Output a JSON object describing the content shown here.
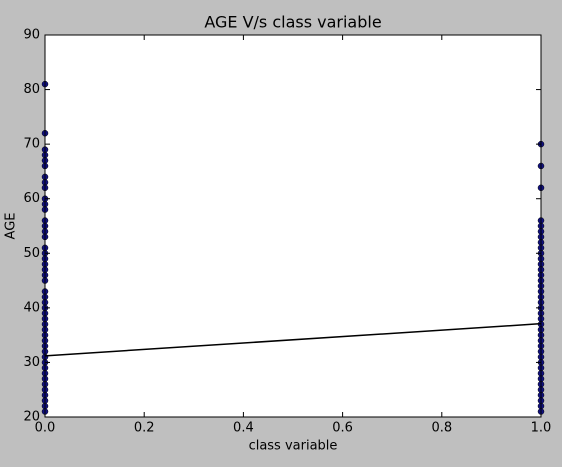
{
  "chart_data": {
    "type": "scatter",
    "title": "AGE V/s class variable",
    "x_label": "class variable",
    "y_label": "AGE",
    "xlim": [
      0,
      1
    ],
    "ylim": [
      20,
      90
    ],
    "xticks": [
      {
        "value": 0,
        "label": "0.0"
      },
      0.2,
      0.4,
      0.6,
      0.8,
      {
        "value": 1,
        "label": "1.0"
      }
    ],
    "yticks": [
      20,
      30,
      40,
      50,
      60,
      70,
      80,
      90
    ],
    "series": [
      {
        "type": "scatter",
        "color": "#101080",
        "x": [
          0,
          0,
          0,
          0,
          0,
          0,
          0,
          0,
          0,
          0,
          0,
          0,
          0,
          0,
          0,
          0,
          0,
          0,
          0,
          0,
          0,
          0,
          0,
          0,
          0,
          0,
          0,
          0,
          0,
          0,
          0,
          0,
          0,
          0,
          0,
          0,
          0,
          0,
          0,
          0,
          0,
          0,
          0,
          0,
          0,
          0,
          1,
          1,
          1,
          1,
          1,
          1,
          1,
          1,
          1,
          1,
          1,
          1,
          1,
          1,
          1,
          1,
          1,
          1,
          1,
          1,
          1,
          1,
          1,
          1,
          1,
          1,
          1,
          1,
          1,
          1,
          1,
          1,
          1,
          1,
          1,
          1,
          1,
          1,
          1
        ],
        "values": [
          81,
          72,
          69,
          68,
          67,
          66,
          64,
          63,
          62,
          60,
          59,
          58,
          56,
          55,
          54,
          53,
          51,
          50,
          49,
          48,
          47,
          46,
          45,
          43,
          42,
          41,
          40,
          39,
          38,
          37,
          36,
          35,
          34,
          33,
          32,
          31,
          30,
          29,
          28,
          27,
          26,
          25,
          24,
          23,
          22,
          21,
          70,
          66,
          62,
          56,
          55,
          54,
          53,
          52,
          51,
          50,
          49,
          48,
          47,
          46,
          45,
          44,
          43,
          42,
          41,
          40,
          39,
          38,
          37,
          36,
          35,
          34,
          33,
          32,
          31,
          30,
          29,
          28,
          27,
          26,
          25,
          24,
          23,
          22,
          21
        ]
      },
      {
        "type": "line",
        "color": "#000000",
        "x": [
          0,
          1
        ],
        "values": [
          31.2,
          37.1
        ]
      }
    ]
  }
}
